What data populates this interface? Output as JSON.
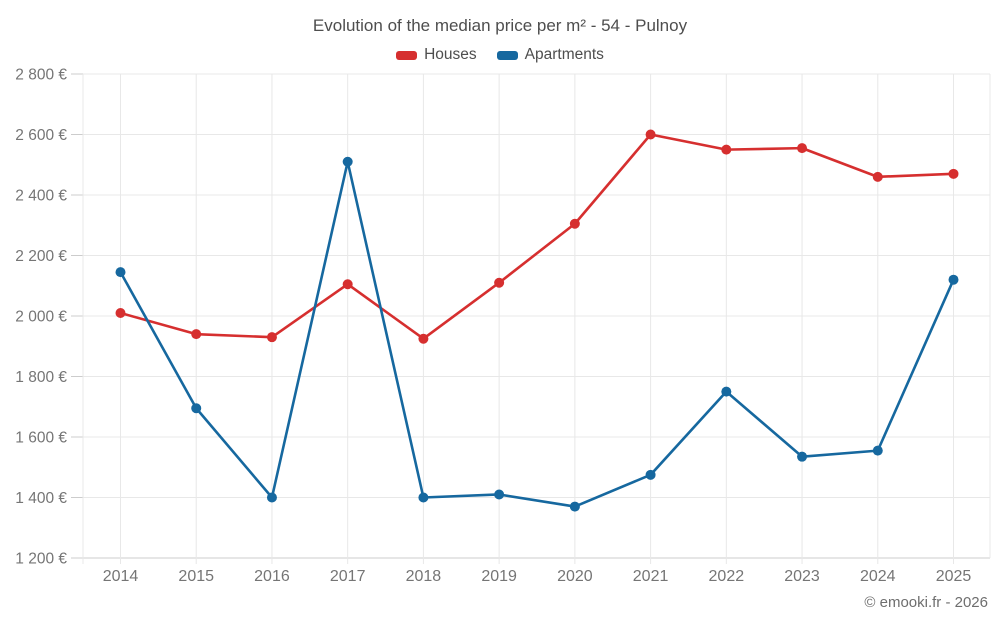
{
  "title": "Evolution of the median price per m² - 54 - Pulnoy",
  "copyright": "© emooki.fr - 2026",
  "colors": {
    "houses": "#d62f2f",
    "apartments": "#16689f",
    "grid": "#e8e8e8",
    "axis": "#cccccc",
    "axis_text": "#757575",
    "title_text": "#4e4e4e"
  },
  "legend": {
    "items": [
      {
        "label": "Houses"
      },
      {
        "label": "Apartments"
      }
    ]
  },
  "chart_data": {
    "type": "line",
    "title": "Evolution of the median price per m² - 54 - Pulnoy",
    "xlabel": "",
    "ylabel": "",
    "x": [
      2014,
      2015,
      2016,
      2017,
      2018,
      2019,
      2020,
      2021,
      2022,
      2023,
      2024,
      2025
    ],
    "series": [
      {
        "name": "Houses",
        "color": "#d62f2f",
        "values": [
          2010,
          1940,
          1930,
          2105,
          1925,
          2110,
          2305,
          2600,
          2550,
          2555,
          2460,
          2470
        ]
      },
      {
        "name": "Apartments",
        "color": "#16689f",
        "values": [
          2145,
          1695,
          1400,
          2510,
          1400,
          1410,
          1370,
          1475,
          1750,
          1535,
          1555,
          2120
        ]
      }
    ],
    "ylim": [
      1200,
      2800
    ],
    "ytick_step": 200,
    "ytick_labels": [
      "1 200 €",
      "1 400 €",
      "1 600 €",
      "1 800 €",
      "2 000 €",
      "2 200 €",
      "2 400 €",
      "2 600 €",
      "2 800 €"
    ],
    "grid": true,
    "legend_position": "top"
  }
}
